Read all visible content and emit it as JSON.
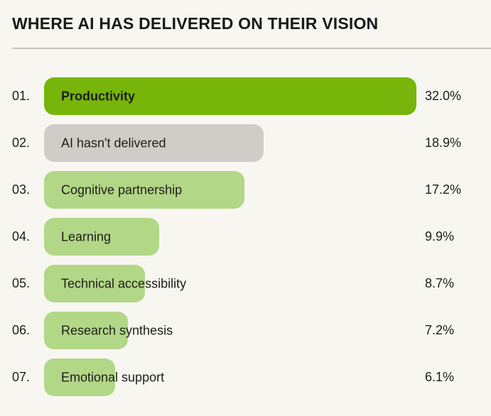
{
  "header": {
    "title": "WHERE AI HAS DELIVERED ON THEIR VISION"
  },
  "colors": {
    "background": "#F8F6F1",
    "text": "#1E1D1A",
    "divider": "#C6C3BA",
    "primary_green": "#77B50A",
    "light_green": "#B2D787",
    "gray": "#CECDC8"
  },
  "chart_data": {
    "type": "bar",
    "orientation": "horizontal",
    "title": "WHERE AI HAS DELIVERED ON THEIR VISION",
    "xlabel": "",
    "ylabel": "",
    "value_unit": "%",
    "max_value": 32.0,
    "grid": false,
    "legend": false,
    "items": [
      {
        "rank": "01.",
        "label": "Productivity",
        "value": 32.0,
        "value_label": "32.0%",
        "color": "#77B50A",
        "emphasis": true
      },
      {
        "rank": "02.",
        "label": "AI hasn't delivered",
        "value": 18.9,
        "value_label": "18.9%",
        "color": "#CECDC8",
        "emphasis": false
      },
      {
        "rank": "03.",
        "label": "Cognitive partnership",
        "value": 17.2,
        "value_label": "17.2%",
        "color": "#B2D787",
        "emphasis": false
      },
      {
        "rank": "04.",
        "label": "Learning",
        "value": 9.9,
        "value_label": "9.9%",
        "color": "#B2D787",
        "emphasis": false
      },
      {
        "rank": "05.",
        "label": "Technical accessibility",
        "value": 8.7,
        "value_label": "8.7%",
        "color": "#B2D787",
        "emphasis": false
      },
      {
        "rank": "06.",
        "label": "Research synthesis",
        "value": 7.2,
        "value_label": "7.2%",
        "color": "#B2D787",
        "emphasis": false
      },
      {
        "rank": "07.",
        "label": "Emotional support",
        "value": 6.1,
        "value_label": "6.1%",
        "color": "#B2D787",
        "emphasis": false
      }
    ]
  }
}
